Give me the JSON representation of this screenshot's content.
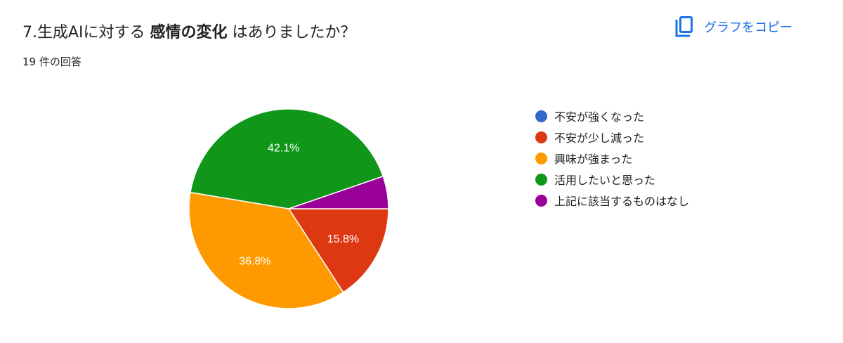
{
  "header": {
    "title_prefix": "7.生成AIに対する ",
    "title_bold": "感情の変化",
    "title_suffix": " はありましたか？",
    "response_count": "19 件の回答",
    "copy_button_label": "グラフをコピー",
    "copy_icon": "copy-icon"
  },
  "legend": {
    "items": [
      {
        "label": "不安が強くなった",
        "color": "#3366cc"
      },
      {
        "label": "不安が少し減った",
        "color": "#dc3912"
      },
      {
        "label": "興味が強まった",
        "color": "#ff9900"
      },
      {
        "label": "活用したいと思った",
        "color": "#109618"
      },
      {
        "label": "上記に該当するものはなし",
        "color": "#990099"
      }
    ]
  },
  "chart_data": {
    "type": "pie",
    "title": "7.生成AIに対する 感情の変化 はありましたか？",
    "subtitle": "19 件の回答",
    "categories": [
      "不安が強くなった",
      "不安が少し減った",
      "興味が強まった",
      "活用したいと思った",
      "上記に該当するものはなし"
    ],
    "values": [
      0,
      3,
      7,
      8,
      1
    ],
    "percentages": [
      0.0,
      15.8,
      36.8,
      42.1,
      5.3
    ],
    "colors": [
      "#3366cc",
      "#dc3912",
      "#ff9900",
      "#109618",
      "#990099"
    ],
    "slice_labels": [
      "",
      "15.8%",
      "36.8%",
      "42.1%",
      ""
    ],
    "legend_position": "right",
    "total": 19
  }
}
